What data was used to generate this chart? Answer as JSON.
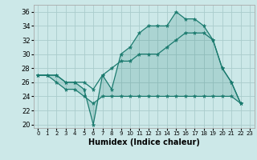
{
  "xlabel": "Humidex (Indice chaleur)",
  "background_color": "#cce8e8",
  "grid_color": "#aacccc",
  "line_color": "#1a7a6e",
  "fill_color": "#1a7a6e",
  "xlim": [
    -0.5,
    23.5
  ],
  "ylim": [
    19.5,
    37.0
  ],
  "xticks": [
    0,
    1,
    2,
    3,
    4,
    5,
    6,
    7,
    8,
    9,
    10,
    11,
    12,
    13,
    14,
    15,
    16,
    17,
    18,
    19,
    20,
    21,
    22,
    23
  ],
  "yticks": [
    20,
    22,
    24,
    26,
    28,
    30,
    32,
    34,
    36
  ],
  "series_max": [
    27,
    27,
    27,
    26,
    26,
    25,
    20,
    27,
    25,
    30,
    31,
    33,
    34,
    34,
    34,
    36,
    35,
    35,
    34,
    32,
    28,
    26,
    23
  ],
  "series_mean": [
    27,
    27,
    27,
    26,
    26,
    26,
    25,
    27,
    28,
    29,
    29,
    30,
    30,
    30,
    31,
    32,
    33,
    33,
    33,
    32,
    28,
    26,
    23
  ],
  "series_min": [
    27,
    27,
    26,
    25,
    25,
    24,
    23,
    24,
    24,
    24,
    24,
    24,
    24,
    24,
    24,
    24,
    24,
    24,
    24,
    24,
    24,
    24,
    23
  ],
  "x": [
    0,
    1,
    2,
    3,
    4,
    5,
    6,
    7,
    8,
    9,
    10,
    11,
    12,
    13,
    14,
    15,
    16,
    17,
    18,
    19,
    20,
    21,
    22
  ]
}
